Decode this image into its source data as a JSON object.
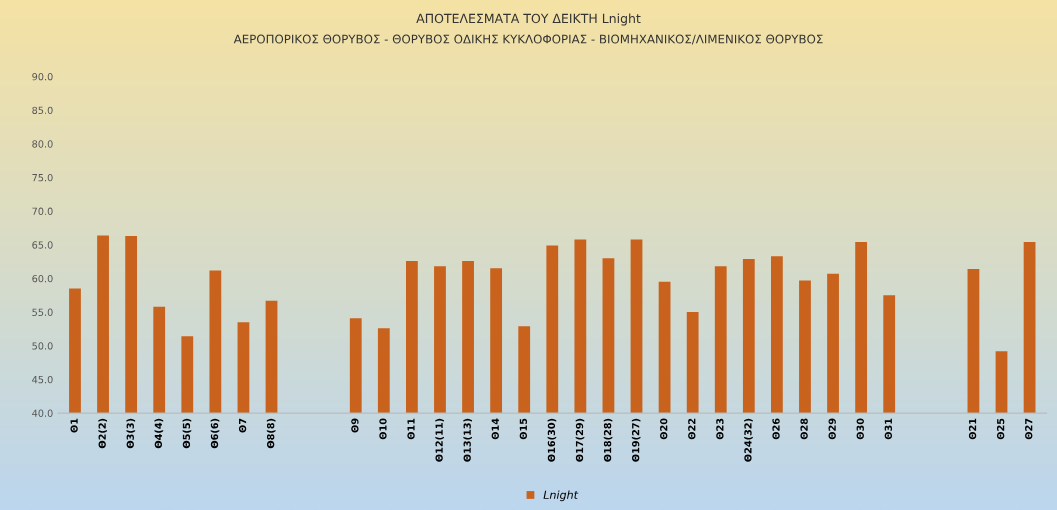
{
  "chart_data": {
    "type": "bar",
    "title": "ΑΠΟΤΕΛΕΣΜΑΤΑ ΤΟΥ ΔΕΙΚΤΗ Lnight",
    "subtitle": "ΑΕΡΟΠΟΡΙΚΟΣ ΘΟΡΥΒΟΣ - ΘΟΡΥΒΟΣ ΟΔΙΚΗΣ ΚΥΚΛΟΦΟΡΙΑΣ - ΒΙΟΜΗΧΑΝΙΚΟΣ/ΛΙΜΕΝΙΚΟΣ ΘΟΡΥΒΟΣ",
    "categories": [
      "Θ1",
      "Θ2(2)",
      "Θ3(3)",
      "Θ4(4)",
      "Θ5(5)",
      "Θ6(6)",
      "Θ7",
      "Θ8(8)",
      null,
      null,
      "Θ9",
      "Θ10",
      "Θ11",
      "Θ12(11)",
      "Θ13(13)",
      "Θ14",
      "Θ15",
      "Θ16(30)",
      "Θ17(29)",
      "Θ18(28)",
      "Θ19(27)",
      "Θ20",
      "Θ22",
      "Θ23",
      "Θ24(32)",
      "Θ26",
      "Θ28",
      "Θ29",
      "Θ30",
      "Θ31",
      null,
      null,
      "Θ21",
      "Θ25",
      "Θ27"
    ],
    "series": [
      {
        "name": "Lnight",
        "color": "#c8621c",
        "values": [
          58.5,
          66.4,
          66.3,
          55.8,
          51.4,
          61.2,
          53.5,
          56.7,
          null,
          null,
          54.1,
          52.6,
          62.6,
          61.8,
          62.6,
          61.5,
          52.9,
          64.9,
          65.8,
          63.0,
          65.8,
          59.5,
          55.0,
          61.8,
          62.9,
          63.3,
          59.7,
          60.7,
          65.4,
          57.5,
          null,
          null,
          61.4,
          49.2,
          65.4
        ]
      }
    ],
    "ylim": [
      40,
      90
    ],
    "yticks": [
      {
        "value": 40,
        "label": "40.0"
      },
      {
        "value": 45,
        "label": "45.0"
      },
      {
        "value": 50,
        "label": "50.0"
      },
      {
        "value": 55,
        "label": "55.0"
      },
      {
        "value": 60,
        "label": "60.0"
      },
      {
        "value": 65,
        "label": "65.0"
      },
      {
        "value": 70,
        "label": "70.0"
      },
      {
        "value": 75,
        "label": "75.0"
      },
      {
        "value": 80,
        "label": "80.0"
      },
      {
        "value": 85,
        "label": "85.0"
      },
      {
        "value": 90,
        "label": "90.0"
      }
    ],
    "grid": false,
    "legend": "bottom"
  }
}
